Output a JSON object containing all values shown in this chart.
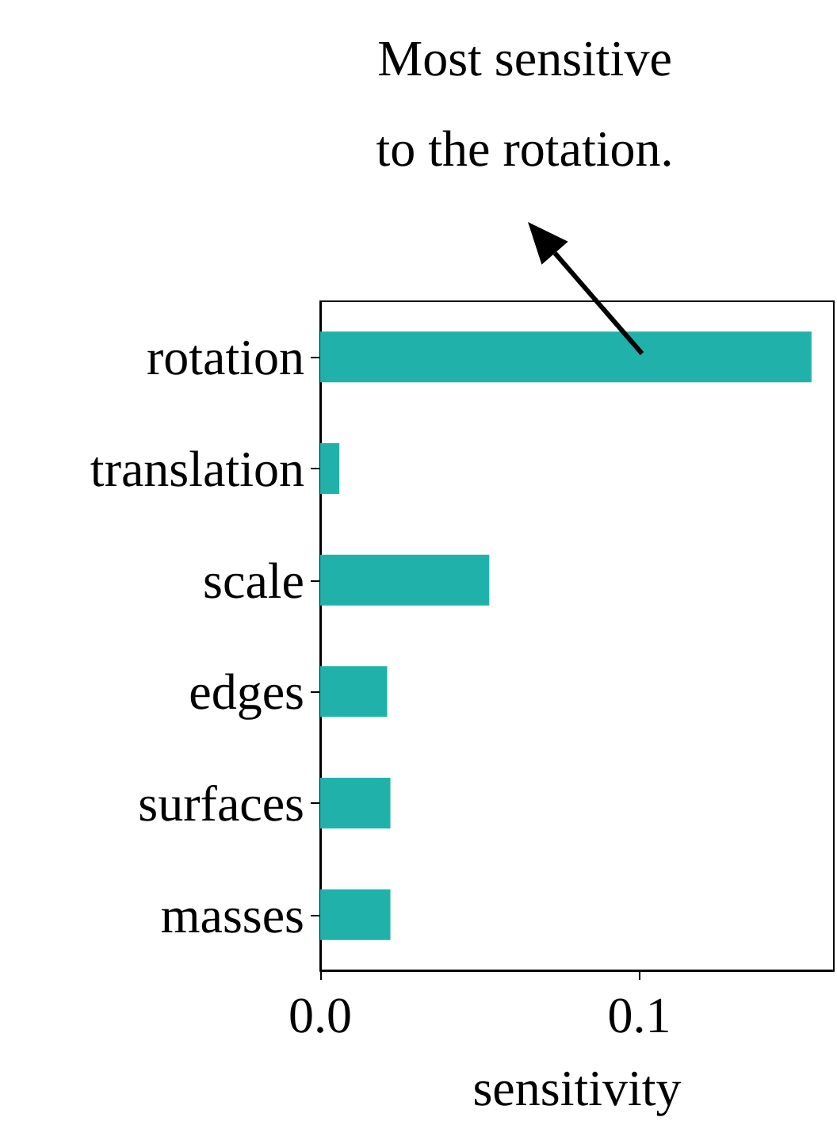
{
  "chart_data": {
    "type": "bar",
    "orientation": "horizontal",
    "categories": [
      "rotation",
      "translation",
      "scale",
      "edges",
      "surfaces",
      "masses"
    ],
    "values": [
      0.154,
      0.006,
      0.053,
      0.021,
      0.022,
      0.022
    ],
    "color": "#20b2aa",
    "xlabel": "sensitivity",
    "xlim": [
      0,
      0.161
    ],
    "xticks": [
      {
        "value": 0,
        "label": "0.0"
      },
      0.1
    ],
    "grid": false,
    "annotations": [
      "Most sensitive\nto the rotation."
    ]
  }
}
